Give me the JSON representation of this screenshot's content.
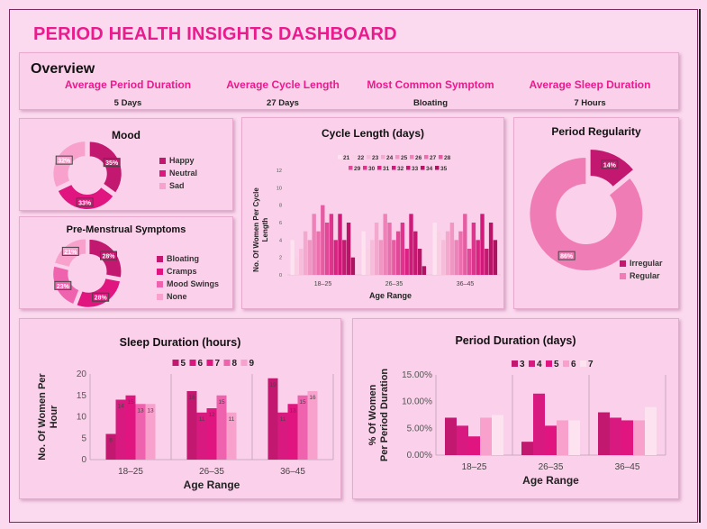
{
  "dashboard_title": "PERIOD HEALTH INSIGHTS DASHBOARD",
  "overview": {
    "heading": "Overview",
    "kpis": [
      {
        "label": "Average Period Duration",
        "value": "5 Days"
      },
      {
        "label": "Average Cycle Length",
        "value": "27 Days"
      },
      {
        "label": "Most Common Symptom",
        "value": "Bloating"
      },
      {
        "label": "Average Sleep Duration",
        "value": "7 Hours"
      }
    ]
  },
  "colors": {
    "page_bg": "#fbd9ee",
    "panel_bg": "#fbd0ea",
    "title_pink": "#ea1b8d",
    "magenta_dark": "#c2186f",
    "magenta": "#e0157f",
    "pink_mid": "#ef62ad",
    "pink_light": "#f7a1cc",
    "pink_pale": "#fde2f0"
  },
  "chart_data": [
    {
      "id": "mood",
      "type": "pie",
      "title": "Mood",
      "categories": [
        "Happy",
        "Neutral",
        "Sad"
      ],
      "values": [
        35,
        33,
        32
      ],
      "value_labels": [
        "35%",
        "33%",
        "32%"
      ],
      "colors": [
        "#c2186f",
        "#e0157f",
        "#f7a1cc"
      ],
      "legend_position": "right"
    },
    {
      "id": "symptoms",
      "type": "pie",
      "title": "Pre-Menstrual Symptoms",
      "categories": [
        "Bloating",
        "Cramps",
        "Mood Swings",
        "None"
      ],
      "values": [
        28,
        28,
        23,
        21
      ],
      "value_labels": [
        "28%",
        "28%",
        "23%",
        "21%"
      ],
      "colors": [
        "#c2186f",
        "#e0157f",
        "#ef62ad",
        "#f7a1cc"
      ],
      "legend_position": "right"
    },
    {
      "id": "cycle",
      "type": "bar",
      "title": "Cycle Length (days)",
      "xlabel": "Age Range",
      "ylabel": "No. Of Women Per Cycle Length",
      "categories": [
        "18–25",
        "26–35",
        "36–45"
      ],
      "series_labels": [
        "21",
        "22",
        "23",
        "24",
        "25",
        "26",
        "27",
        "28",
        "29",
        "30",
        "31",
        "32",
        "33",
        "34",
        "35"
      ],
      "series_colors": [
        "#fde2f0",
        "#f9cfe4",
        "#f6bcd9",
        "#f3a9ce",
        "#f096c3",
        "#ec82b8",
        "#e96fad",
        "#e55ca2",
        "#e14897",
        "#dd358c",
        "#d92281",
        "#d01a79",
        "#c41871",
        "#b81569",
        "#ac1361"
      ],
      "groups": [
        [
          4,
          2,
          3,
          5,
          4,
          7,
          5,
          8,
          6,
          7,
          4,
          7,
          4,
          6,
          2
        ],
        [
          5,
          3,
          4,
          6,
          4,
          7,
          6,
          4,
          5,
          6,
          3,
          7,
          5,
          3,
          1
        ],
        [
          6,
          5,
          4,
          5,
          6,
          4,
          5,
          7,
          3,
          6,
          4,
          7,
          3,
          6,
          4
        ]
      ],
      "ylim": [
        0,
        12
      ],
      "yticks": [
        0,
        2,
        4,
        6,
        8,
        10,
        12
      ],
      "legend_position": "top"
    },
    {
      "id": "regularity",
      "type": "pie",
      "title": "Period Regularity",
      "categories": [
        "Irregular",
        "Regular"
      ],
      "values": [
        14,
        86
      ],
      "value_labels": [
        "14%",
        "86%"
      ],
      "colors": [
        "#c2186f",
        "#f07cb6"
      ],
      "legend_position": "bottom"
    },
    {
      "id": "sleep",
      "type": "bar",
      "title": "Sleep Duration (hours)",
      "xlabel": "Age Range",
      "ylabel": "No. Of Women Per Hour",
      "categories": [
        "18–25",
        "26–35",
        "36–45"
      ],
      "series": [
        {
          "name": "5",
          "values": [
            6,
            16,
            19
          ]
        },
        {
          "name": "6",
          "values": [
            14,
            11,
            11
          ]
        },
        {
          "name": "7",
          "values": [
            15,
            12,
            13
          ]
        },
        {
          "name": "8",
          "values": [
            13,
            15,
            15
          ]
        },
        {
          "name": "9",
          "values": [
            13,
            11,
            16
          ]
        }
      ],
      "series_colors": [
        "#c2186f",
        "#d81a80",
        "#e0157f",
        "#ef62ad",
        "#f7a1cc"
      ],
      "ylim": [
        0,
        20
      ],
      "yticks": [
        0,
        5,
        10,
        15,
        20
      ],
      "legend_position": "top"
    },
    {
      "id": "period",
      "type": "bar",
      "title": "Period Duration (days)",
      "xlabel": "Age Range",
      "ylabel": "% Of Women Per Period Duration",
      "categories": [
        "18–25",
        "26–35",
        "36–45"
      ],
      "series": [
        {
          "name": "3",
          "values": [
            7.0,
            2.5,
            8.0
          ]
        },
        {
          "name": "4",
          "values": [
            5.5,
            11.5,
            7.0
          ]
        },
        {
          "name": "5",
          "values": [
            3.5,
            5.5,
            6.5
          ]
        },
        {
          "name": "6",
          "values": [
            7.0,
            6.5,
            6.5
          ]
        },
        {
          "name": "7",
          "values": [
            7.5,
            6.5,
            9.0
          ]
        }
      ],
      "series_colors": [
        "#c2186f",
        "#d81a80",
        "#e0157f",
        "#f7a1cc",
        "#fde2f0"
      ],
      "ylim": [
        0,
        15
      ],
      "yticks": [
        0,
        5,
        10,
        15
      ],
      "ytick_labels": [
        "0.00%",
        "5.00%",
        "10.00%",
        "15.00%"
      ],
      "legend_position": "top"
    }
  ]
}
